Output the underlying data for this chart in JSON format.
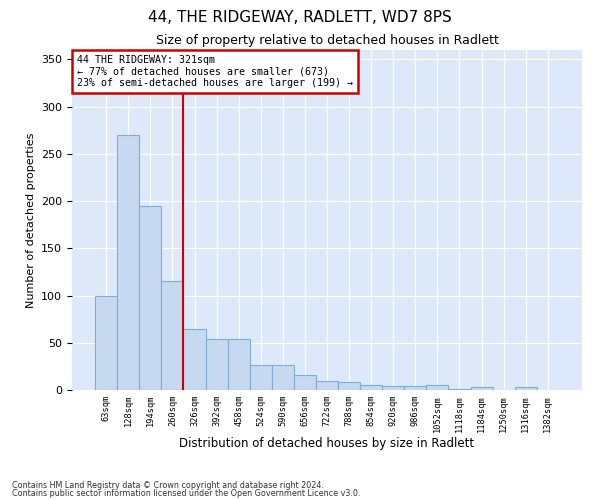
{
  "title": "44, THE RIDGEWAY, RADLETT, WD7 8PS",
  "subtitle": "Size of property relative to detached houses in Radlett",
  "xlabel": "Distribution of detached houses by size in Radlett",
  "ylabel": "Number of detached properties",
  "categories": [
    "63sqm",
    "128sqm",
    "194sqm",
    "260sqm",
    "326sqm",
    "392sqm",
    "458sqm",
    "524sqm",
    "590sqm",
    "656sqm",
    "722sqm",
    "788sqm",
    "854sqm",
    "920sqm",
    "986sqm",
    "1052sqm",
    "1118sqm",
    "1184sqm",
    "1250sqm",
    "1316sqm",
    "1382sqm"
  ],
  "values": [
    100,
    270,
    195,
    115,
    65,
    54,
    54,
    26,
    26,
    16,
    10,
    9,
    5,
    4,
    4,
    5,
    1,
    3,
    0,
    3,
    0
  ],
  "bar_color": "#c6d9f1",
  "bar_edge_color": "#7bafd4",
  "vline_x": 3.5,
  "vline_color": "#cc0000",
  "annotation_line1": "44 THE RIDGEWAY: 321sqm",
  "annotation_line2": "← 77% of detached houses are smaller (673)",
  "annotation_line3": "23% of semi-detached houses are larger (199) →",
  "annotation_box_color": "#cc0000",
  "ylim": [
    0,
    360
  ],
  "yticks": [
    0,
    50,
    100,
    150,
    200,
    250,
    300,
    350
  ],
  "background_color": "#dde8f8",
  "footnote1": "Contains HM Land Registry data © Crown copyright and database right 2024.",
  "footnote2": "Contains public sector information licensed under the Open Government Licence v3.0."
}
